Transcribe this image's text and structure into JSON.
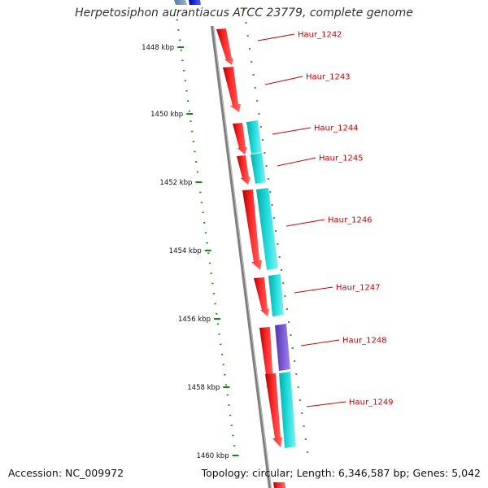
{
  "title": "Herpetosiphon aurantiacus ATCC 23779, complete genome",
  "accession": "Accession: NC_009972",
  "summary": "Topology: circular; Length: 6,346,587 bp; Genes: 5,042",
  "colors": {
    "forward_gene": "#ee0000",
    "reverse_gene": "#11cccc",
    "rna_gene": "#7755cc",
    "backbone": "#888888",
    "tick": "#118811",
    "label": "#cc0000"
  },
  "scale_ticks": [
    {
      "label": "1448 kbp"
    },
    {
      "label": "1450 kbp"
    },
    {
      "label": "1452 kbp"
    },
    {
      "label": "1454 kbp"
    },
    {
      "label": "1456 kbp"
    },
    {
      "label": "1458 kbp"
    },
    {
      "label": "1460 kbp"
    }
  ],
  "gene_labels": [
    {
      "name": "Haur_1242"
    },
    {
      "name": "Haur_1243"
    },
    {
      "name": "Haur_1244"
    },
    {
      "name": "Haur_1245"
    },
    {
      "name": "Haur_1246"
    },
    {
      "name": "Haur_1247"
    },
    {
      "name": "Haur_1248"
    },
    {
      "name": "Haur_1249"
    }
  ]
}
